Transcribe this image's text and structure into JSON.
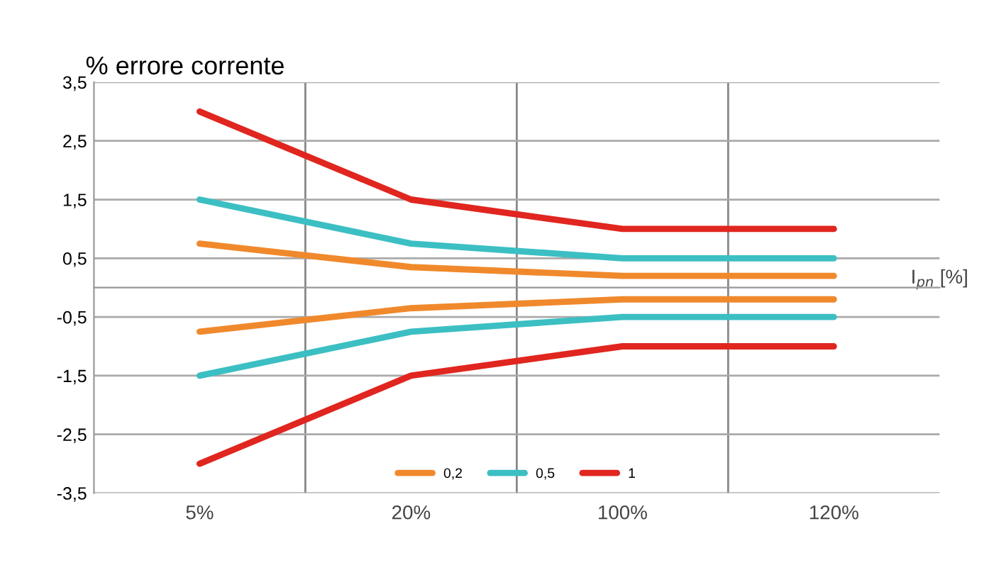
{
  "chart_data": {
    "type": "line",
    "title": "% errore corrente",
    "xlabel": "I$_{pn}$ [%]",
    "categories": [
      "5%",
      "20%",
      "100%",
      "120%"
    ],
    "series": [
      {
        "name": "0,2",
        "color": "#f0892c",
        "values": [
          0.75,
          0.35,
          0.2,
          0.2
        ]
      },
      {
        "color": "#f0892c",
        "values": [
          -0.75,
          -0.35,
          -0.2,
          -0.2
        ]
      },
      {
        "name": "0,5",
        "color": "#3cbfc3",
        "values": [
          1.5,
          0.75,
          0.5,
          0.5
        ]
      },
      {
        "color": "#3cbfc3",
        "values": [
          -1.5,
          -0.75,
          -0.5,
          -0.5
        ]
      },
      {
        "name": "1",
        "color": "#e0261f",
        "values": [
          3,
          1.5,
          1,
          1
        ]
      },
      {
        "color": "#e0261f",
        "values": [
          -3,
          -1.5,
          -1,
          -1
        ]
      }
    ],
    "ylim": [
      -3.5,
      3.5
    ],
    "yticks": [
      {
        "value": -3.5,
        "label": "-3,5"
      },
      {
        "value": -2.5,
        "label": "-2,5"
      },
      {
        "value": -1.5,
        "label": "-1,5"
      },
      {
        "value": -0.5,
        "label": "-0,5"
      },
      {
        "value": 0.5,
        "label": "0,5"
      },
      {
        "value": 1.5,
        "label": "1,5"
      },
      {
        "value": 2.5,
        "label": "2,5"
      },
      {
        "value": 3.5,
        "label": "3,5"
      }
    ],
    "grid": true,
    "legend": "bottom",
    "marker": "none",
    "line_style": "solid"
  }
}
